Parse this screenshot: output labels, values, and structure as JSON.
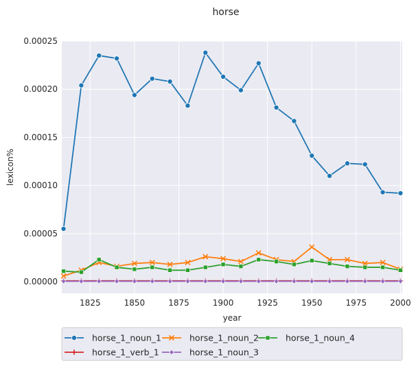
{
  "chart_data": {
    "type": "line",
    "title": "horse",
    "xlabel": "year",
    "ylabel": "lexicon%",
    "xlim": [
      1809,
      2001
    ],
    "ylim": [
      -1.2e-05,
      0.00025
    ],
    "x_ticks": [
      1825,
      1850,
      1875,
      1900,
      1925,
      1950,
      1975,
      2000
    ],
    "x_tick_labels": [
      "1825",
      "1850",
      "1875",
      "1900",
      "1925",
      "1950",
      "1975",
      "2000"
    ],
    "y_ticks": [
      0,
      5e-05,
      0.0001,
      0.00015,
      0.0002,
      0.00025
    ],
    "y_tick_labels": [
      "0.00000",
      "0.00005",
      "0.00010",
      "0.00015",
      "0.00020",
      "0.00025"
    ],
    "grid": true,
    "legend_position": "below-plot",
    "x": [
      1810,
      1820,
      1830,
      1840,
      1850,
      1860,
      1870,
      1880,
      1890,
      1900,
      1910,
      1920,
      1930,
      1940,
      1950,
      1960,
      1970,
      1980,
      1990,
      2000
    ],
    "series": [
      {
        "name": "horse_1_noun_1",
        "color": "#1f77b4",
        "marker": "circle",
        "values": [
          5.5e-05,
          0.000204,
          0.000235,
          0.000232,
          0.000194,
          0.000211,
          0.000208,
          0.000183,
          0.000238,
          0.000213,
          0.000199,
          0.000227,
          0.000181,
          0.000167,
          0.000131,
          0.00011,
          0.000123,
          0.000122,
          9.3e-05,
          9.2e-05
        ]
      },
      {
        "name": "horse_1_noun_2",
        "color": "#ff7f0e",
        "marker": "x",
        "values": [
          6e-06,
          1.2e-05,
          2e-05,
          1.6e-05,
          1.9e-05,
          2e-05,
          1.8e-05,
          2e-05,
          2.6e-05,
          2.4e-05,
          2.1e-05,
          3e-05,
          2.3e-05,
          2.1e-05,
          3.6e-05,
          2.3e-05,
          2.3e-05,
          1.9e-05,
          2e-05,
          1.3e-05
        ]
      },
      {
        "name": "horse_1_noun_4",
        "color": "#2ca02c",
        "marker": "square",
        "values": [
          1.1e-05,
          1e-05,
          2.3e-05,
          1.5e-05,
          1.3e-05,
          1.5e-05,
          1.2e-05,
          1.2e-05,
          1.5e-05,
          1.8e-05,
          1.6e-05,
          2.3e-05,
          2.1e-05,
          1.8e-05,
          2.2e-05,
          1.9e-05,
          1.6e-05,
          1.5e-05,
          1.5e-05,
          1.2e-05
        ]
      },
      {
        "name": "horse_1_verb_1",
        "color": "#d62728",
        "marker": "plus",
        "values": [
          1e-06,
          1e-06,
          1e-06,
          1e-06,
          1e-06,
          1e-06,
          1e-06,
          1e-06,
          1e-06,
          1e-06,
          1e-06,
          1e-06,
          1e-06,
          1e-06,
          1e-06,
          1e-06,
          1e-06,
          1e-06,
          1e-06,
          1e-06
        ]
      },
      {
        "name": "horse_1_noun_3",
        "color": "#9467bd",
        "marker": "diamond",
        "values": [
          5e-07,
          5e-07,
          5e-07,
          5e-07,
          5e-07,
          5e-07,
          5e-07,
          5e-07,
          5e-07,
          5e-07,
          5e-07,
          5e-07,
          5e-07,
          5e-07,
          5e-07,
          5e-07,
          5e-07,
          5e-07,
          5e-07,
          5e-07
        ]
      }
    ],
    "legend_order": [
      "horse_1_noun_1",
      "horse_1_noun_2",
      "horse_1_noun_4",
      "horse_1_verb_1",
      "horse_1_noun_3"
    ]
  }
}
